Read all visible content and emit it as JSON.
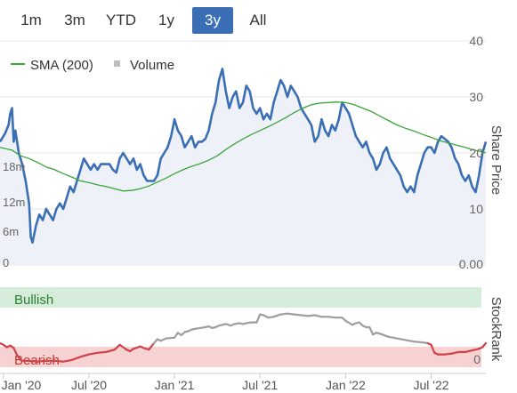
{
  "range_selector": {
    "buttons": [
      "1m",
      "3m",
      "YTD",
      "1y",
      "3y",
      "All"
    ],
    "active": "3y"
  },
  "colors": {
    "price_line": "#3a6fb5",
    "price_fill": "#eef1f8",
    "sma_line": "#3aa63a",
    "volume_bars": "#bdbdbd",
    "bullish_band": "#d4ecd9",
    "bearish_band": "#f6d2d3",
    "rank_neutral": "#9e9e9e",
    "rank_bearish": "#d0414a",
    "grid": "#e4e4e4"
  },
  "chart_data": [
    {
      "type": "line",
      "legend": [
        {
          "name": "SMA (200)",
          "marker": "line"
        },
        {
          "name": "Volume",
          "marker": "square"
        }
      ],
      "right_axis": {
        "label": "Share Price",
        "ticks": [
          "40",
          "30",
          "20",
          "10",
          "0.00"
        ],
        "ylim": [
          0,
          40
        ]
      },
      "volume_axis": {
        "ticks": [
          "0",
          "6m",
          "12m",
          "18m"
        ],
        "ylim": [
          0,
          24
        ]
      },
      "x_ticks": [
        {
          "label": "Jan '20",
          "t": 0.0
        },
        {
          "label": "Jul '20",
          "t": 0.5
        },
        {
          "label": "Jan '21",
          "t": 1.0
        },
        {
          "label": "Jul '21",
          "t": 1.5
        },
        {
          "label": "Jan '22",
          "t": 2.0
        },
        {
          "label": "Jul '22",
          "t": 2.5
        }
      ],
      "x_range": [
        -0.02,
        2.82
      ],
      "price": [
        [
          -0.02,
          22
        ],
        [
          0.01,
          23.5
        ],
        [
          0.03,
          25
        ],
        [
          0.04,
          27
        ],
        [
          0.05,
          28
        ],
        [
          0.06,
          22
        ],
        [
          0.07,
          24
        ],
        [
          0.09,
          20
        ],
        [
          0.11,
          18
        ],
        [
          0.13,
          15
        ],
        [
          0.15,
          11
        ],
        [
          0.16,
          5
        ],
        [
          0.17,
          4
        ],
        [
          0.19,
          7
        ],
        [
          0.21,
          9
        ],
        [
          0.23,
          8
        ],
        [
          0.25,
          10
        ],
        [
          0.27,
          9
        ],
        [
          0.29,
          8
        ],
        [
          0.31,
          10
        ],
        [
          0.33,
          11
        ],
        [
          0.35,
          10
        ],
        [
          0.37,
          12
        ],
        [
          0.39,
          14
        ],
        [
          0.41,
          13
        ],
        [
          0.43,
          15
        ],
        [
          0.45,
          17
        ],
        [
          0.47,
          19
        ],
        [
          0.49,
          18
        ],
        [
          0.51,
          17
        ],
        [
          0.53,
          18
        ],
        [
          0.55,
          17
        ],
        [
          0.57,
          18
        ],
        [
          0.6,
          18
        ],
        [
          0.62,
          18
        ],
        [
          0.64,
          17
        ],
        [
          0.66,
          16.5
        ],
        [
          0.68,
          19
        ],
        [
          0.7,
          20
        ],
        [
          0.72,
          19
        ],
        [
          0.74,
          18
        ],
        [
          0.76,
          19
        ],
        [
          0.78,
          17
        ],
        [
          0.8,
          18
        ],
        [
          0.82,
          16
        ],
        [
          0.84,
          15
        ],
        [
          0.86,
          15
        ],
        [
          0.88,
          15
        ],
        [
          0.9,
          16
        ],
        [
          0.92,
          19
        ],
        [
          0.94,
          20
        ],
        [
          0.96,
          21
        ],
        [
          0.98,
          23
        ],
        [
          1.0,
          26
        ],
        [
          1.02,
          24
        ],
        [
          1.04,
          23
        ],
        [
          1.06,
          21
        ],
        [
          1.08,
          22
        ],
        [
          1.1,
          23
        ],
        [
          1.12,
          21
        ],
        [
          1.14,
          22
        ],
        [
          1.16,
          22
        ],
        [
          1.18,
          22.5
        ],
        [
          1.2,
          24
        ],
        [
          1.22,
          27
        ],
        [
          1.24,
          29
        ],
        [
          1.26,
          33
        ],
        [
          1.28,
          35
        ],
        [
          1.3,
          31
        ],
        [
          1.32,
          28
        ],
        [
          1.34,
          30
        ],
        [
          1.36,
          31
        ],
        [
          1.38,
          28
        ],
        [
          1.4,
          29
        ],
        [
          1.42,
          32
        ],
        [
          1.44,
          31
        ],
        [
          1.46,
          28
        ],
        [
          1.48,
          27
        ],
        [
          1.5,
          28
        ],
        [
          1.52,
          26
        ],
        [
          1.54,
          27
        ],
        [
          1.56,
          26
        ],
        [
          1.58,
          29
        ],
        [
          1.6,
          31
        ],
        [
          1.62,
          33
        ],
        [
          1.64,
          32
        ],
        [
          1.66,
          30
        ],
        [
          1.68,
          32
        ],
        [
          1.7,
          31
        ],
        [
          1.72,
          30
        ],
        [
          1.74,
          28
        ],
        [
          1.76,
          27
        ],
        [
          1.78,
          26
        ],
        [
          1.8,
          25
        ],
        [
          1.82,
          22
        ],
        [
          1.84,
          23
        ],
        [
          1.86,
          26
        ],
        [
          1.88,
          24
        ],
        [
          1.9,
          23
        ],
        [
          1.92,
          25
        ],
        [
          1.94,
          24
        ],
        [
          1.96,
          26
        ],
        [
          1.98,
          29
        ],
        [
          2.0,
          28
        ],
        [
          2.02,
          27
        ],
        [
          2.04,
          25
        ],
        [
          2.06,
          23
        ],
        [
          2.08,
          22
        ],
        [
          2.1,
          21
        ],
        [
          2.12,
          22
        ],
        [
          2.14,
          20
        ],
        [
          2.16,
          19
        ],
        [
          2.18,
          17
        ],
        [
          2.2,
          18
        ],
        [
          2.22,
          20
        ],
        [
          2.24,
          21
        ],
        [
          2.26,
          19
        ],
        [
          2.28,
          18
        ],
        [
          2.3,
          17
        ],
        [
          2.32,
          16
        ],
        [
          2.34,
          14
        ],
        [
          2.36,
          13
        ],
        [
          2.38,
          14
        ],
        [
          2.4,
          13
        ],
        [
          2.42,
          16
        ],
        [
          2.44,
          18
        ],
        [
          2.46,
          20
        ],
        [
          2.48,
          21
        ],
        [
          2.5,
          21
        ],
        [
          2.52,
          20
        ],
        [
          2.54,
          22
        ],
        [
          2.56,
          23
        ],
        [
          2.58,
          22.5
        ],
        [
          2.6,
          22
        ],
        [
          2.62,
          21
        ],
        [
          2.64,
          19
        ],
        [
          2.66,
          18
        ],
        [
          2.68,
          16
        ],
        [
          2.7,
          15
        ],
        [
          2.72,
          16
        ],
        [
          2.74,
          14
        ],
        [
          2.76,
          13
        ],
        [
          2.78,
          16
        ],
        [
          2.8,
          20
        ],
        [
          2.82,
          22
        ]
      ],
      "sma_200": [
        [
          -0.02,
          21
        ],
        [
          0.05,
          20.5
        ],
        [
          0.1,
          19.5
        ],
        [
          0.15,
          19
        ],
        [
          0.2,
          18.3
        ],
        [
          0.25,
          17.5
        ],
        [
          0.3,
          17
        ],
        [
          0.35,
          16.3
        ],
        [
          0.4,
          15.7
        ],
        [
          0.45,
          15
        ],
        [
          0.5,
          14.7
        ],
        [
          0.55,
          14.3
        ],
        [
          0.6,
          14
        ],
        [
          0.65,
          13.6
        ],
        [
          0.7,
          13.2
        ],
        [
          0.75,
          13.3
        ],
        [
          0.8,
          13.6
        ],
        [
          0.85,
          14.1
        ],
        [
          0.9,
          14.8
        ],
        [
          0.95,
          15.5
        ],
        [
          1.0,
          16.3
        ],
        [
          1.05,
          17
        ],
        [
          1.1,
          17.6
        ],
        [
          1.15,
          18.1
        ],
        [
          1.2,
          18.7
        ],
        [
          1.25,
          19.5
        ],
        [
          1.3,
          20.6
        ],
        [
          1.35,
          21.6
        ],
        [
          1.4,
          22.5
        ],
        [
          1.45,
          23.3
        ],
        [
          1.5,
          24
        ],
        [
          1.55,
          24.7
        ],
        [
          1.6,
          25.5
        ],
        [
          1.65,
          26.3
        ],
        [
          1.7,
          27.2
        ],
        [
          1.75,
          28
        ],
        [
          1.8,
          28.6
        ],
        [
          1.85,
          28.9
        ],
        [
          1.9,
          29
        ],
        [
          1.95,
          29.1
        ],
        [
          2.0,
          29
        ],
        [
          2.05,
          28.6
        ],
        [
          2.1,
          28
        ],
        [
          2.15,
          27.4
        ],
        [
          2.2,
          26.6
        ],
        [
          2.25,
          25.8
        ],
        [
          2.3,
          25
        ],
        [
          2.35,
          24.4
        ],
        [
          2.4,
          23.9
        ],
        [
          2.45,
          23.3
        ],
        [
          2.5,
          22.8
        ],
        [
          2.55,
          22.2
        ],
        [
          2.6,
          21.8
        ],
        [
          2.65,
          21.4
        ],
        [
          2.7,
          21
        ],
        [
          2.75,
          20.5
        ],
        [
          2.8,
          20.2
        ],
        [
          2.82,
          20
        ]
      ],
      "volume": [
        [
          0.0,
          2.5
        ],
        [
          0.06,
          1.0
        ],
        [
          0.12,
          1.5
        ],
        [
          0.18,
          3.0
        ],
        [
          0.22,
          1.0
        ],
        [
          0.27,
          1.5
        ],
        [
          0.32,
          4.0
        ],
        [
          0.35,
          5.0
        ],
        [
          0.4,
          1.0
        ],
        [
          0.45,
          1.0
        ],
        [
          0.55,
          0.8
        ],
        [
          0.65,
          1.5
        ],
        [
          0.75,
          0.8
        ],
        [
          0.85,
          0.6
        ],
        [
          0.95,
          2.0
        ],
        [
          1.05,
          0.8
        ],
        [
          1.1,
          1.0
        ],
        [
          1.17,
          1.5
        ],
        [
          1.22,
          2.5
        ],
        [
          1.3,
          1.0
        ],
        [
          1.42,
          2.0
        ],
        [
          1.5,
          1.2
        ],
        [
          1.55,
          2.0
        ],
        [
          1.65,
          1.0
        ],
        [
          1.72,
          1.5
        ],
        [
          1.8,
          2.0
        ],
        [
          1.85,
          2.5
        ],
        [
          1.9,
          1.0
        ],
        [
          1.95,
          1.5
        ],
        [
          2.05,
          1.5
        ],
        [
          2.15,
          0.8
        ],
        [
          2.25,
          1.0
        ],
        [
          2.3,
          1.0
        ],
        [
          2.4,
          0.6
        ],
        [
          2.55,
          0.8
        ],
        [
          2.62,
          1.5
        ],
        [
          2.72,
          2.5
        ],
        [
          2.78,
          1.2
        ]
      ]
    },
    {
      "type": "line",
      "right_axis": {
        "label": "StockRank",
        "ticks": [
          "0"
        ]
      },
      "bands": [
        {
          "label": "Bullish",
          "position": "top"
        },
        {
          "label": "Bearish",
          "position": "bottom"
        }
      ],
      "ylim": [
        0,
        100
      ],
      "x_range": [
        -0.02,
        2.82
      ],
      "rank": [
        [
          -0.02,
          30
        ],
        [
          0.0,
          28
        ],
        [
          0.02,
          25
        ],
        [
          0.04,
          27
        ],
        [
          0.06,
          24
        ],
        [
          0.08,
          15
        ],
        [
          0.1,
          9
        ],
        [
          0.12,
          8
        ],
        [
          0.14,
          8
        ],
        [
          0.2,
          7
        ],
        [
          0.25,
          8
        ],
        [
          0.3,
          8
        ],
        [
          0.35,
          7
        ],
        [
          0.4,
          9
        ],
        [
          0.45,
          13
        ],
        [
          0.5,
          16
        ],
        [
          0.55,
          18
        ],
        [
          0.6,
          19
        ],
        [
          0.65,
          22
        ],
        [
          0.68,
          28
        ],
        [
          0.7,
          25
        ],
        [
          0.72,
          22
        ],
        [
          0.74,
          20
        ],
        [
          0.76,
          23
        ],
        [
          0.8,
          26
        ],
        [
          0.82,
          24
        ],
        [
          0.85,
          22
        ],
        [
          0.88,
          30
        ],
        [
          0.9,
          35
        ],
        [
          0.92,
          33
        ],
        [
          0.95,
          36
        ],
        [
          1.0,
          37
        ],
        [
          1.02,
          43
        ],
        [
          1.04,
          40
        ],
        [
          1.06,
          44
        ],
        [
          1.08,
          45
        ],
        [
          1.1,
          47
        ],
        [
          1.12,
          48
        ],
        [
          1.15,
          49
        ],
        [
          1.18,
          50
        ],
        [
          1.2,
          51
        ],
        [
          1.22,
          49
        ],
        [
          1.24,
          50
        ],
        [
          1.26,
          52
        ],
        [
          1.28,
          53
        ],
        [
          1.3,
          54
        ],
        [
          1.33,
          52
        ],
        [
          1.35,
          54
        ],
        [
          1.38,
          55
        ],
        [
          1.4,
          54
        ],
        [
          1.42,
          55
        ],
        [
          1.45,
          56
        ],
        [
          1.48,
          56
        ],
        [
          1.5,
          66
        ],
        [
          1.52,
          65
        ],
        [
          1.55,
          62
        ],
        [
          1.58,
          63
        ],
        [
          1.62,
          66
        ],
        [
          1.66,
          67
        ],
        [
          1.7,
          66
        ],
        [
          1.74,
          65
        ],
        [
          1.78,
          64
        ],
        [
          1.82,
          65
        ],
        [
          1.86,
          63
        ],
        [
          1.9,
          63
        ],
        [
          1.94,
          62
        ],
        [
          1.98,
          62
        ],
        [
          2.0,
          58
        ],
        [
          2.04,
          53
        ],
        [
          2.06,
          55
        ],
        [
          2.08,
          56
        ],
        [
          2.1,
          52
        ],
        [
          2.12,
          50
        ],
        [
          2.14,
          50
        ],
        [
          2.16,
          41
        ],
        [
          2.18,
          43
        ],
        [
          2.2,
          42
        ],
        [
          2.25,
          38
        ],
        [
          2.3,
          36
        ],
        [
          2.35,
          34
        ],
        [
          2.4,
          32
        ],
        [
          2.45,
          31
        ],
        [
          2.48,
          30
        ],
        [
          2.5,
          28
        ],
        [
          2.52,
          18
        ],
        [
          2.54,
          16
        ],
        [
          2.58,
          16
        ],
        [
          2.62,
          17
        ],
        [
          2.66,
          19
        ],
        [
          2.7,
          19
        ],
        [
          2.74,
          21
        ],
        [
          2.78,
          23
        ],
        [
          2.8,
          25
        ],
        [
          2.82,
          30
        ]
      ]
    }
  ]
}
